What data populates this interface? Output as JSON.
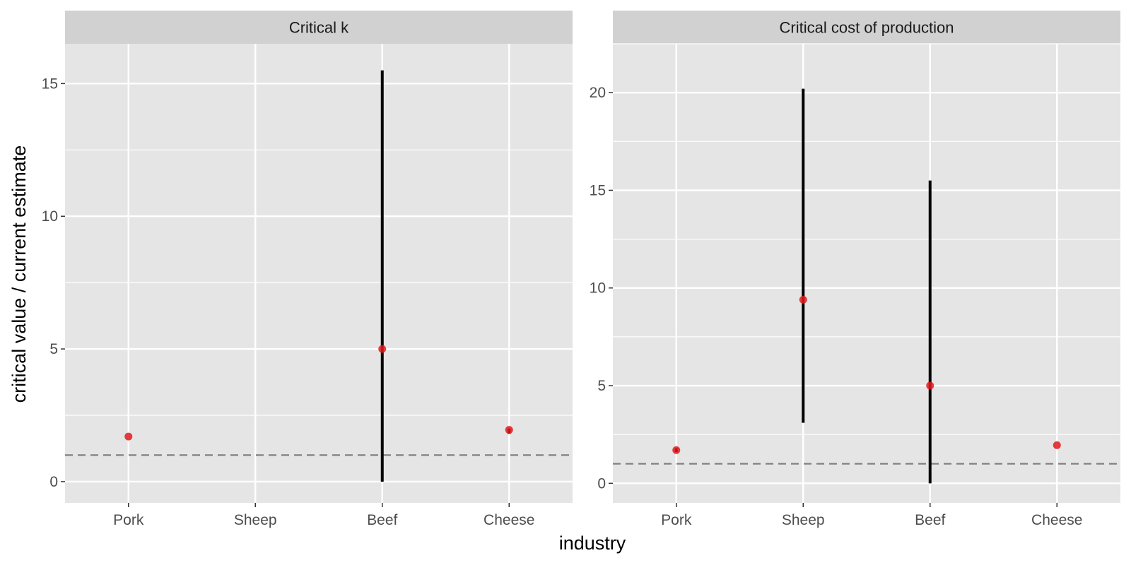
{
  "chart_data": {
    "type": "scatter",
    "xlabel": "industry",
    "ylabel": "critical value / current estimate",
    "categories": [
      "Pork",
      "Sheep",
      "Beef",
      "Cheese"
    ],
    "reference_line": {
      "y": 1,
      "style": "dashed",
      "color": "#7f7f7f"
    },
    "colors": {
      "point": "#e31a1c",
      "errorbar": "#000000",
      "panel_bg": "#e5e5e5",
      "strip_bg": "#d1d1d1",
      "grid": "#ffffff"
    },
    "grid": true,
    "facets": [
      {
        "title": "Critical k",
        "ylim": [
          -0.8,
          16.5
        ],
        "yticks": [
          0,
          5,
          10,
          15
        ],
        "points": [
          {
            "category": "Pork",
            "y": 1.7,
            "lower": 1.7,
            "upper": 1.7
          },
          {
            "category": "Sheep",
            "y": null,
            "lower": null,
            "upper": null
          },
          {
            "category": "Beef",
            "y": 5.0,
            "lower": 0.0,
            "upper": 15.5
          },
          {
            "category": "Cheese",
            "y": 1.95,
            "lower": 1.8,
            "upper": 2.0
          }
        ]
      },
      {
        "title": "Critical cost of production",
        "ylim": [
          -1.0,
          22.5
        ],
        "yticks": [
          0,
          5,
          10,
          15,
          20
        ],
        "points": [
          {
            "category": "Pork",
            "y": 1.7,
            "lower": 1.6,
            "upper": 1.8
          },
          {
            "category": "Sheep",
            "y": 9.4,
            "lower": 3.1,
            "upper": 20.2
          },
          {
            "category": "Beef",
            "y": 5.0,
            "lower": 0.0,
            "upper": 15.5
          },
          {
            "category": "Cheese",
            "y": 1.95,
            "lower": 1.95,
            "upper": 1.95
          }
        ]
      }
    ]
  }
}
